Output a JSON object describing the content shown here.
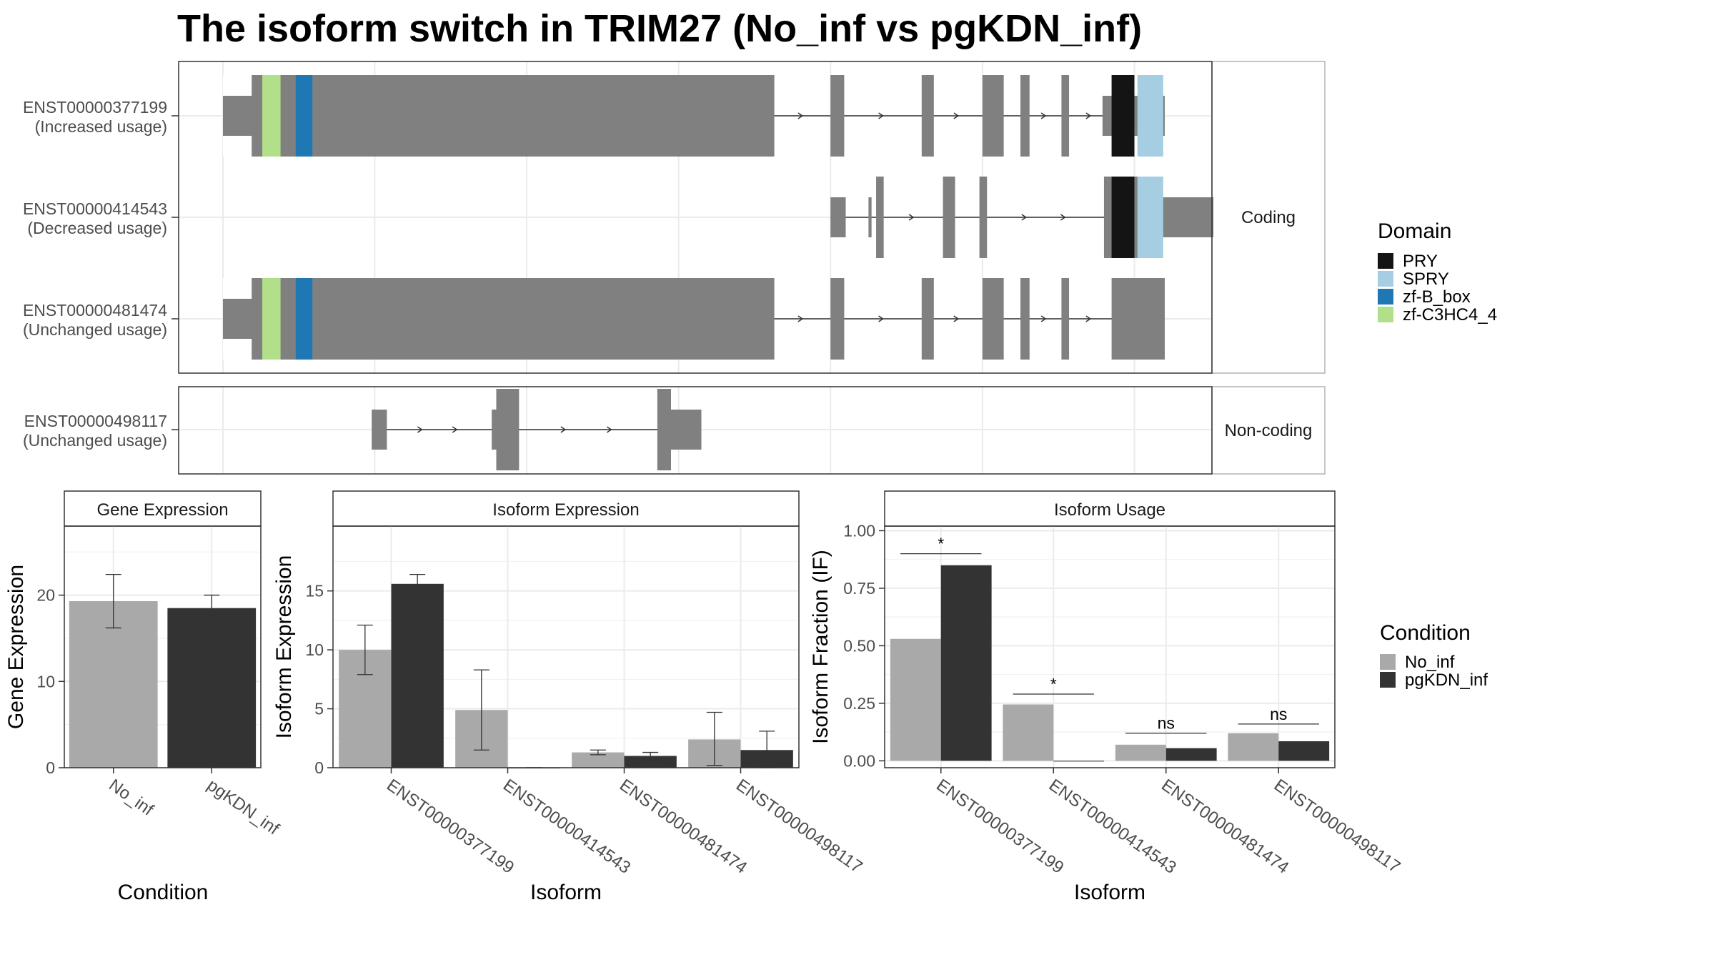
{
  "title": "The isoform switch in TRIM27 (No_inf vs pgKDN_inf)",
  "structure": {
    "genome_start": 1,
    "genome_end": 6200,
    "x_grid": [
      1,
      1000,
      2000,
      3000,
      4000,
      5000,
      6000
    ],
    "facets": [
      {
        "label": "Coding",
        "rows": [
          0,
          1,
          2
        ]
      },
      {
        "label": "Non-coding",
        "rows": [
          3
        ]
      }
    ],
    "transcripts": [
      {
        "id": "ENST00000377199",
        "usage": "(Increased usage)",
        "exons": [
          [
            1,
            3630
          ],
          [
            4000,
            4090
          ],
          [
            4600,
            4680
          ],
          [
            5000,
            5140
          ],
          [
            5250,
            5310
          ],
          [
            5520,
            5570
          ],
          [
            5850,
            6200
          ]
        ],
        "utr": [
          [
            1,
            190
          ],
          [
            5790,
            6200
          ]
        ],
        "domains": [
          {
            "name": "zf-C3HC4_4",
            "start": 260,
            "end": 380
          },
          {
            "name": "zf-B_box",
            "start": 480,
            "end": 590
          },
          {
            "name": "PRY",
            "start": 5850,
            "end": 6000
          },
          {
            "name": "SPRY",
            "start": 6020,
            "end": 6190
          }
        ]
      },
      {
        "id": "ENST00000414543",
        "usage": "(Decreased usage)",
        "exons": [
          [
            4000,
            4100
          ],
          [
            4250,
            4270
          ],
          [
            4300,
            4350
          ],
          [
            4740,
            4820
          ],
          [
            4980,
            5030
          ],
          [
            5800,
            6000
          ],
          [
            6000,
            6150
          ]
        ],
        "utr": [
          [
            4000,
            4100
          ],
          [
            4250,
            4270
          ],
          [
            6150,
            6520
          ]
        ],
        "domains": [
          {
            "name": "PRY",
            "start": 5850,
            "end": 6000
          },
          {
            "name": "SPRY",
            "start": 6020,
            "end": 6190
          }
        ]
      },
      {
        "id": "ENST00000481474",
        "usage": "(Unchanged usage)",
        "exons": [
          [
            1,
            3630
          ],
          [
            4000,
            4090
          ],
          [
            4600,
            4680
          ],
          [
            5000,
            5140
          ],
          [
            5250,
            5310
          ],
          [
            5520,
            5570
          ],
          [
            5850,
            6200
          ]
        ],
        "utr": [
          [
            1,
            190
          ]
        ],
        "domains": [
          {
            "name": "zf-C3HC4_4",
            "start": 260,
            "end": 380
          },
          {
            "name": "zf-B_box",
            "start": 480,
            "end": 590
          }
        ]
      },
      {
        "id": "ENST00000498117",
        "usage": "(Unchanged usage)",
        "exons": [
          [
            980,
            1080
          ],
          [
            1770,
            1800
          ],
          [
            1800,
            1950
          ],
          [
            2860,
            2950
          ],
          [
            2950,
            3150
          ]
        ],
        "utr": [
          [
            980,
            1080
          ],
          [
            1770,
            1800
          ],
          [
            2950,
            3150
          ]
        ],
        "domains": []
      }
    ]
  },
  "legends": {
    "domain": {
      "title": "Domain",
      "items": [
        {
          "label": "PRY",
          "color": "#141414"
        },
        {
          "label": "SPRY",
          "color": "#a6cee3"
        },
        {
          "label": "zf-B_box",
          "color": "#1f78b4"
        },
        {
          "label": "zf-C3HC4_4",
          "color": "#b2df8a"
        }
      ]
    },
    "condition": {
      "title": "Condition",
      "items": [
        {
          "label": "No_inf",
          "color": "#a9a9a9"
        },
        {
          "label": "pgKDN_inf",
          "color": "#333333"
        }
      ]
    }
  },
  "colors": {
    "exon": "#808080",
    "panel_border": "#333333",
    "grid": "#ebebeb",
    "strip_border": "#b3b3b3"
  },
  "chart_data": [
    {
      "type": "bar",
      "title": "Gene Expression",
      "xlabel": "Condition",
      "ylabel": "Gene Expression",
      "ylim": [
        0,
        28
      ],
      "yticks": [
        0,
        10,
        20
      ],
      "categories": [
        "No_inf",
        "pgKDN_inf"
      ],
      "values": [
        19.3,
        18.5
      ],
      "error": [
        [
          16.2,
          22.4
        ],
        [
          17.1,
          20.0
        ]
      ],
      "grid": true
    },
    {
      "type": "bar",
      "title": "Isoform Expression",
      "xlabel": "Isoform",
      "ylabel": "Isoform Expression",
      "ylim": [
        0,
        20.5
      ],
      "yticks": [
        0,
        5,
        10,
        15
      ],
      "categories": [
        "ENST00000377199",
        "ENST00000414543",
        "ENST00000481474",
        "ENST00000498117"
      ],
      "series": [
        {
          "name": "No_inf",
          "values": [
            10.0,
            4.9,
            1.3,
            2.4
          ],
          "error": [
            [
              7.9,
              12.1
            ],
            [
              1.5,
              8.3
            ],
            [
              1.1,
              1.5
            ],
            [
              0.2,
              4.7
            ]
          ]
        },
        {
          "name": "pgKDN_inf",
          "values": [
            15.6,
            0.0,
            1.0,
            1.5
          ],
          "error": [
            [
              14.8,
              16.4
            ],
            [
              0.0,
              0.0
            ],
            [
              0.7,
              1.3
            ],
            [
              0.0,
              3.1
            ]
          ]
        }
      ],
      "grid": true
    },
    {
      "type": "bar",
      "title": "Isoform Usage",
      "xlabel": "Isoform",
      "ylabel": "Isoform Fraction (IF)",
      "ylim": [
        -0.03,
        1.02
      ],
      "yticks": [
        0,
        0.25,
        0.5,
        0.75,
        1.0
      ],
      "ytick_labels": [
        "0.00",
        "0.25",
        "0.50",
        "0.75",
        "1.00"
      ],
      "categories": [
        "ENST00000377199",
        "ENST00000414543",
        "ENST00000481474",
        "ENST00000498117"
      ],
      "series": [
        {
          "name": "No_inf",
          "values": [
            0.53,
            0.245,
            0.07,
            0.12
          ]
        },
        {
          "name": "pgKDN_inf",
          "values": [
            0.85,
            0.0,
            0.055,
            0.085
          ]
        }
      ],
      "significance": [
        {
          "label": "*",
          "y": 0.9
        },
        {
          "label": "*",
          "y": 0.29
        },
        {
          "label": "ns",
          "y": 0.12
        },
        {
          "label": "ns",
          "y": 0.16
        }
      ],
      "grid": true
    }
  ]
}
